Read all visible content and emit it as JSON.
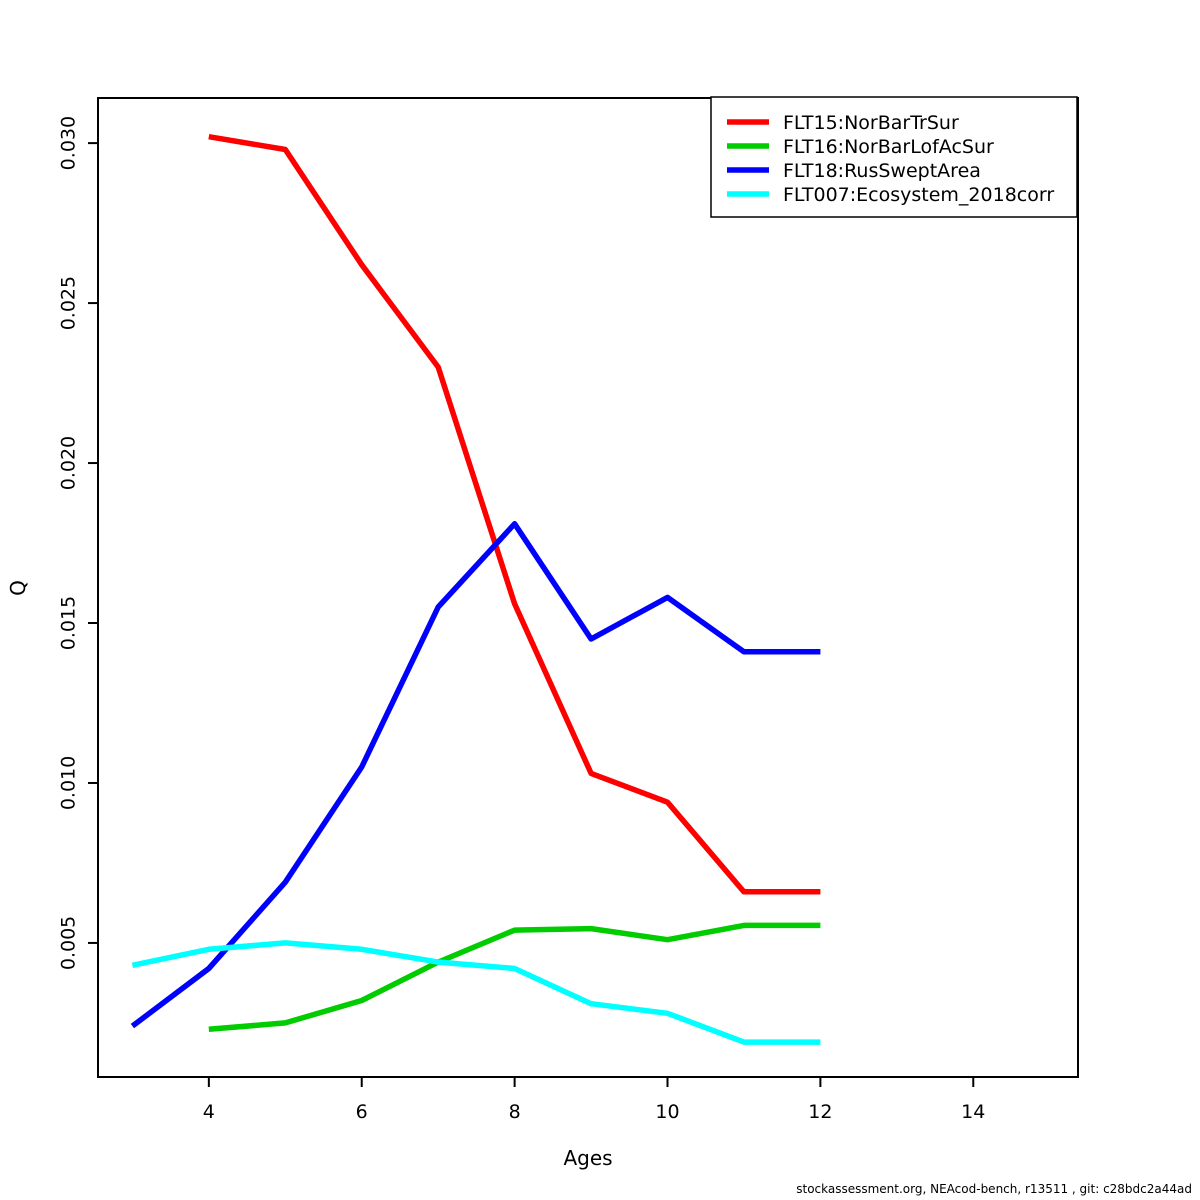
{
  "chart_data": {
    "type": "line",
    "title": "",
    "xlabel": "Ages",
    "ylabel": "Q",
    "grid": false,
    "legend_position": "top-right",
    "xlim": [
      2.55,
      15.37
    ],
    "ylim": [
      0.00081,
      0.03141
    ],
    "x_ticks": [
      4,
      6,
      8,
      10,
      12,
      14
    ],
    "y_ticks": [
      0.005,
      0.01,
      0.015,
      0.02,
      0.025,
      0.03
    ],
    "y_tick_labels": [
      "0.005",
      "0.010",
      "0.015",
      "0.020",
      "0.025",
      "0.030"
    ],
    "series": [
      {
        "name": "FLT15:NorBarTrSur",
        "color": "#FF0000",
        "x": [
          4,
          5,
          6,
          7,
          8,
          9,
          10,
          11,
          12
        ],
        "y": [
          0.0302,
          0.0298,
          0.0262,
          0.023,
          0.0156,
          0.0103,
          0.0094,
          0.0066,
          0.0066
        ]
      },
      {
        "name": "FLT16:NorBarLofAcSur",
        "color": "#00CC00",
        "x": [
          4,
          5,
          6,
          7,
          8,
          9,
          10,
          11,
          12
        ],
        "y": [
          0.0023,
          0.0025,
          0.0032,
          0.0044,
          0.0054,
          0.00545,
          0.0051,
          0.00555,
          0.00555
        ]
      },
      {
        "name": "FLT18:RusSweptArea",
        "color": "#0000FF",
        "x": [
          3,
          4,
          5,
          6,
          7,
          8,
          9,
          10,
          11,
          12
        ],
        "y": [
          0.0024,
          0.0042,
          0.0069,
          0.0105,
          0.0155,
          0.0181,
          0.0145,
          0.0158,
          0.0141,
          0.0141
        ]
      },
      {
        "name": "FLT007:Ecosystem_2018corr",
        "color": "#00FFFF",
        "x": [
          3,
          4,
          5,
          6,
          7,
          8,
          9,
          10,
          11,
          12
        ],
        "y": [
          0.0043,
          0.0048,
          0.005,
          0.0048,
          0.0044,
          0.0042,
          0.0031,
          0.0028,
          0.0019,
          0.0019
        ]
      }
    ]
  },
  "footer": {
    "text": "stockassessment.org, NEAcod-bench, r13511 , git: c28bdc2a44ad"
  }
}
